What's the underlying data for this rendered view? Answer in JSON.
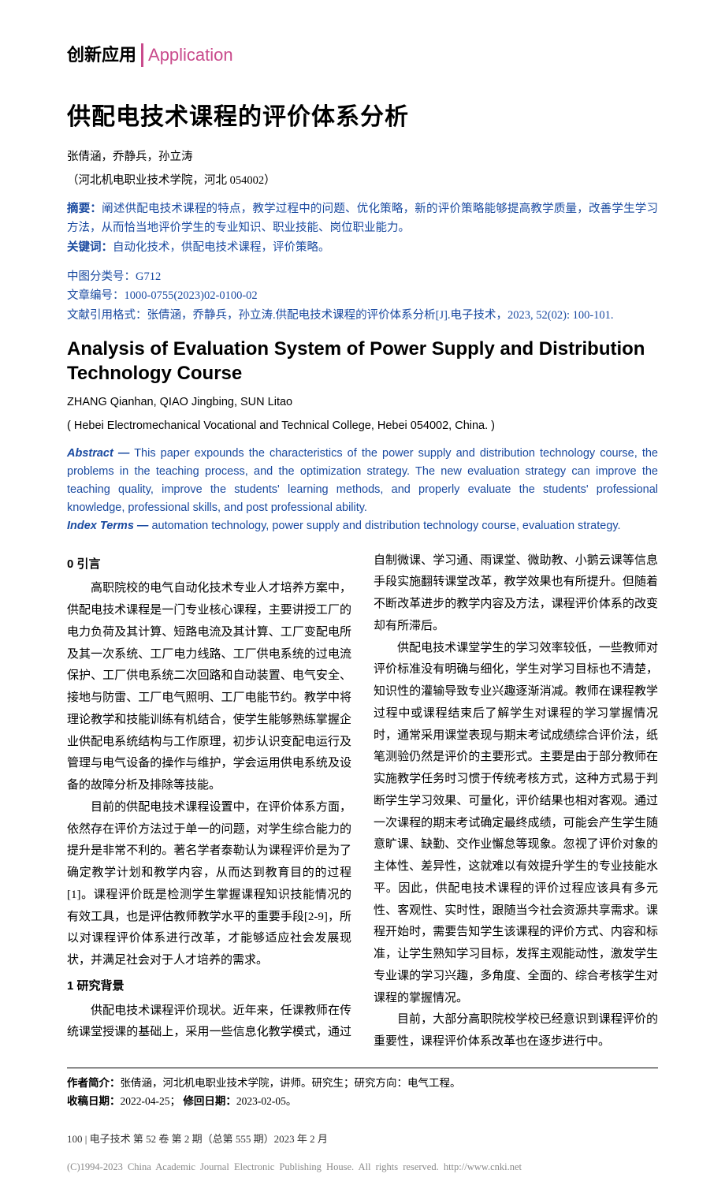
{
  "header": {
    "section_cn": "创新应用",
    "section_en": "Application"
  },
  "title_cn": "供配电技术课程的评价体系分析",
  "authors_cn": "张倩涵，乔静兵，孙立涛",
  "affil_cn": "（河北机电职业技术学院，河北 054002）",
  "abstract_cn_label": "摘要：",
  "abstract_cn": "阐述供配电技术课程的特点，教学过程中的问题、优化策略，新的评价策略能够提高教学质量，改善学生学习方法，从而恰当地评价学生的专业知识、职业技能、岗位职业能力。",
  "keywords_cn_label": "关键词：",
  "keywords_cn": "自动化技术，供配电技术课程，评价策略。",
  "meta": {
    "clc_label": "中图分类号：",
    "clc": "G712",
    "artno_label": "文章编号：",
    "artno": "1000-0755(2023)02-0100-02",
    "cite_label": "文献引用格式：",
    "cite": "张倩涵，乔静兵，孙立涛.供配电技术课程的评价体系分析[J].电子技术，2023, 52(02): 100-101."
  },
  "title_en": "Analysis of Evaluation System of Power Supply and Distribution Technology Course",
  "authors_en": "ZHANG Qianhan, QIAO Jingbing, SUN Litao",
  "affil_en": "( Hebei Electromechanical Vocational and Technical College, Hebei 054002, China. )",
  "abstract_en_label": "Abstract —",
  "abstract_en": " This paper expounds the characteristics of the power supply and distribution technology course, the problems in the teaching process, and the optimization strategy. The new evaluation strategy can improve the teaching quality, improve the students' learning methods, and properly evaluate the students' professional knowledge, professional skills, and post professional ability.",
  "index_label": "Index Terms —",
  "index_terms": " automation technology, power supply and distribution technology course, evaluation strategy.",
  "body": {
    "s0_title": "0 引言",
    "s0_p1": "高职院校的电气自动化技术专业人才培养方案中，供配电技术课程是一门专业核心课程，主要讲授工厂的电力负荷及其计算、短路电流及其计算、工厂变配电所及其一次系统、工厂电力线路、工厂供电系统的过电流保护、工厂供电系统二次回路和自动装置、电气安全、接地与防雷、工厂电气照明、工厂电能节约。教学中将理论教学和技能训练有机结合，使学生能够熟练掌握企业供配电系统结构与工作原理，初步认识变配电运行及管理与电气设备的操作与维护，学会运用供电系统及设备的故障分析及排除等技能。",
    "s0_p2": "目前的供配电技术课程设置中，在评价体系方面，依然存在评价方法过于单一的问题，对学生综合能力的提升是非常不利的。著名学者泰勒认为课程评价是为了确定教学计划和教学内容，从而达到教育目的的过程[1]。课程评价既是检测学生掌握课程知识技能情况的有效工具，也是评估教师教学水平的重要手段[2-9]，所以对课程评价体系进行改革，才能够适应社会发展现状，并满足社会对于人才培养的需求。",
    "s1_title": "1 研究背景",
    "s1_p1": "供配电技术课程评价现状。近年来，任课教师在传统课堂授课的基础上，采用一些信息化教学模式，通过自制微课、学习通、雨课堂、微助教、小鹅云课等信息手段实施翻转课堂改革，教学效果也有所提升。但随着不断改革进步的教学内容及方法，课程评价体系的改变却有所滞后。",
    "s1_p2": "供配电技术课堂学生的学习效率较低，一些教师对评价标准没有明确与细化，学生对学习目标也不清楚，知识性的灌输导致专业兴趣逐渐消减。教师在课程教学过程中或课程结束后了解学生对课程的学习掌握情况时，通常采用课堂表现与期末考试成绩综合评价法，纸笔测验仍然是评价的主要形式。主要是由于部分教师在实施教学任务时习惯于传统考核方式，这种方式易于判断学生学习效果、可量化，评价结果也相对客观。通过一次课程的期末考试确定最终成绩，可能会产生学生随意旷课、缺勤、交作业懈怠等现象。忽视了评价对象的主体性、差异性，这就难以有效提升学生的专业技能水平。因此，供配电技术课程的评价过程应该具有多元性、客观性、实时性，跟随当今社会资源共享需求。课程开始时，需要告知学生该课程的评价方式、内容和标准，让学生熟知学习目标，发挥主观能动性，激发学生专业课的学习兴趣，多角度、全面的、综合考核学生对课程的掌握情况。",
    "s1_p3": "目前，大部分高职院校学校已经意识到课程评价的重要性，课程评价体系改革也在逐步进行中。"
  },
  "author_info_label": "作者简介：",
  "author_info": "张倩涵，河北机电职业技术学院，讲师。研究生；研究方向：电气工程。",
  "recv_label": "收稿日期：",
  "recv": "2022-04-25；",
  "rev_label": "修回日期：",
  "rev": "2023-02-05。",
  "page_foot": "100 | 电子技术  第 52 卷 第 2 期（总第 555 期）2023 年 2 月",
  "copyright": "(C)1994-2023 China Academic Journal Electronic Publishing House. All rights reserved.    http://www.cnki.net",
  "colors": {
    "accent": "#c94b8c",
    "link": "#1a4aa0",
    "text": "#000000",
    "bg": "#ffffff",
    "copy": "#888888"
  }
}
